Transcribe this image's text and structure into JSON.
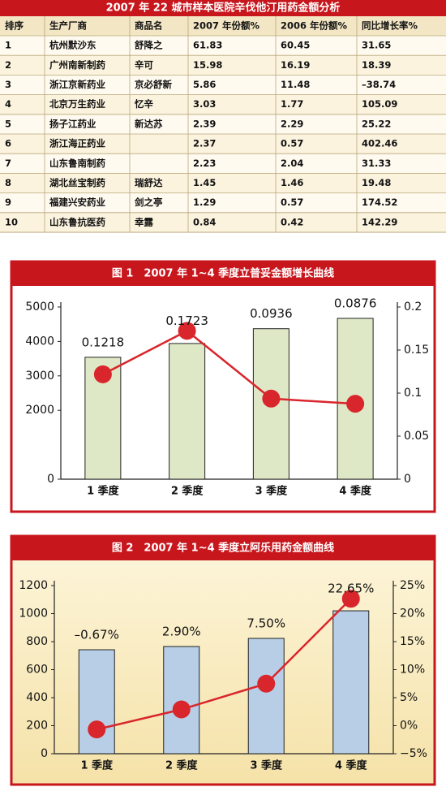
{
  "table": {
    "title": "2007 年 22 城市样本医院辛伐他汀用药金额分析",
    "header": [
      "排序",
      "生产厂商",
      "商品名",
      "2007 年份额%",
      "2006 年份额%",
      "同比增长率%"
    ],
    "rows": [
      [
        "1",
        "杭州默沙东",
        "舒降之",
        "61.83",
        "60.45",
        "31.65"
      ],
      [
        "2",
        "广州南新制药",
        "辛可",
        "15.98",
        "16.19",
        "18.39"
      ],
      [
        "3",
        "浙江京新药业",
        "京必舒新",
        "5.86",
        "11.48",
        "–38.74"
      ],
      [
        "4",
        "北京万生药业",
        "忆辛",
        "3.03",
        "1.77",
        "105.09"
      ],
      [
        "5",
        "扬子江药业",
        "新达苏",
        "2.39",
        "2.29",
        "25.22"
      ],
      [
        "6",
        "浙江海正药业",
        null,
        "2.37",
        "0.57",
        "402.46"
      ],
      [
        "7",
        "山东鲁南制药",
        null,
        "2.23",
        "2.04",
        "31.33"
      ],
      [
        "8",
        "湖北丝宝制药",
        "瑞舒达",
        "1.45",
        "1.46",
        "19.48"
      ],
      [
        "9",
        "福建兴安药业",
        "剑之亭",
        "1.29",
        "0.57",
        "174.52"
      ],
      [
        "10",
        "山东鲁抗医药",
        "幸露",
        "0.84",
        "0.42",
        "142.29"
      ]
    ]
  },
  "chart_data": [
    {
      "type": "combo",
      "title": "图 1　2007 年 1~4 季度立普妥金额增长曲线",
      "categories": [
        "1 季度",
        "2 季度",
        "3 季度",
        "4 季度"
      ],
      "series": [
        {
          "type": "bar",
          "color": "#dfe8c6",
          "values": [
            3540,
            3940,
            4370,
            4670
          ]
        },
        {
          "type": "line",
          "axis": "y2",
          "color": "#d9262c",
          "values": [
            0.1218,
            0.1723,
            0.0936,
            0.0876
          ]
        }
      ],
      "ylim": [
        0,
        5000
      ],
      "yticks": [
        0,
        2000,
        3000,
        4000,
        5000
      ],
      "y2lim": [
        0,
        0.2
      ],
      "y2ticks": [
        0,
        0.05,
        0.1,
        0.15,
        0.2
      ]
    },
    {
      "type": "combo",
      "title": "图 2　2007 年 1~4 季度立阿乐用药金额曲线",
      "categories": [
        "1 季度",
        "2 季度",
        "3 季度",
        "4 季度"
      ],
      "series": [
        {
          "type": "bar",
          "color": "#b7cee6",
          "values": [
            742,
            765,
            823,
            1020
          ]
        },
        {
          "type": "line",
          "axis": "y2",
          "color": "#d9262c",
          "values": [
            -0.67,
            2.9,
            7.5,
            22.65
          ],
          "value_labels": [
            "–0.67%",
            "2.90%",
            "7.50%",
            "22.65%"
          ]
        }
      ],
      "ylim": [
        0,
        1200
      ],
      "yticks": [
        0,
        200,
        400,
        600,
        800,
        1000,
        1200
      ],
      "y2lim": [
        -5,
        25
      ],
      "y2ticks": [
        {
          "value": -5,
          "label": "−5%"
        },
        {
          "value": 0,
          "label": "0%"
        },
        {
          "value": 5,
          "label": "5%"
        },
        {
          "value": 10,
          "label": "10%"
        },
        {
          "value": 15,
          "label": "15%"
        },
        {
          "value": 20,
          "label": "20%"
        },
        {
          "value": 25,
          "label": "25%"
        }
      ]
    }
  ]
}
